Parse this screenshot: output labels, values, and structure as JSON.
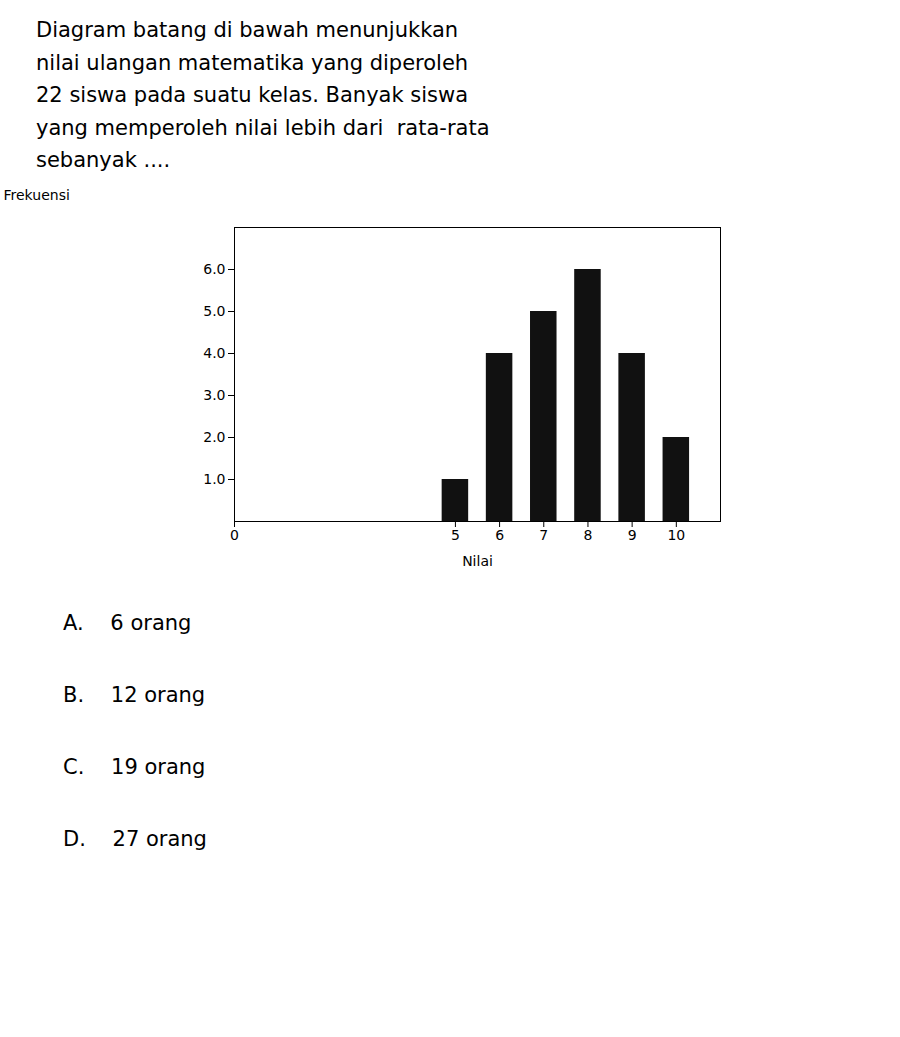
{
  "chart_data": {
    "type": "bar",
    "title": [
      "Diagram batang di bawah menunjukkan",
      "nilai ulangan matematika yang diperoleh",
      "22 siswa pada suatu kelas. Banyak siswa",
      "yang memperoleh nilai lebih dari  rata-rata",
      "sebanyak ...."
    ],
    "x": [
      5,
      6,
      7,
      8,
      9,
      10
    ],
    "values": [
      1,
      4,
      5,
      6,
      4,
      2
    ],
    "color": "#111111",
    "xlabel": "Nilai",
    "ylabel": "Frekuensi",
    "xlim": [
      0,
      11
    ],
    "xticks": [
      0,
      5,
      6,
      7,
      8,
      9,
      10
    ],
    "ylim": [
      0,
      7
    ],
    "yticks": [
      1,
      2,
      3,
      4,
      5,
      6
    ],
    "grid": false,
    "annotations": [
      "A.    6 orang",
      "B.    12 orang",
      "C.    19 orang",
      "D.    27 orang"
    ]
  }
}
